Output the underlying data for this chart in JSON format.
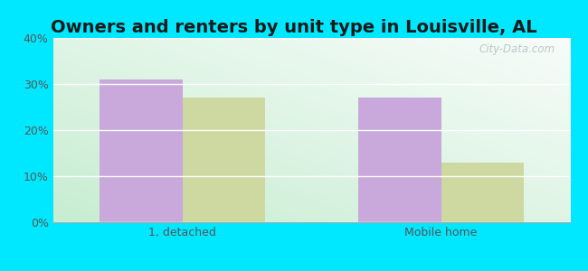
{
  "title": "Owners and renters by unit type in Louisville, AL",
  "categories": [
    "1, detached",
    "Mobile home"
  ],
  "owner_values": [
    31,
    27
  ],
  "renter_values": [
    27,
    13
  ],
  "owner_color": "#c9a8dc",
  "renter_color": "#cdd9a0",
  "ylim": [
    0,
    40
  ],
  "yticks": [
    0,
    10,
    20,
    30,
    40
  ],
  "ytick_labels": [
    "0%",
    "10%",
    "20%",
    "30%",
    "40%"
  ],
  "bg_color_topleft": "#e8f5e5",
  "bg_color_topright": "#f5faf5",
  "bg_color_bottomleft": "#c8ecd0",
  "outer_background": "#00e8ff",
  "watermark": "City-Data.com",
  "bar_width": 0.32,
  "title_fontsize": 14,
  "tick_fontsize": 9,
  "legend_fontsize": 9
}
